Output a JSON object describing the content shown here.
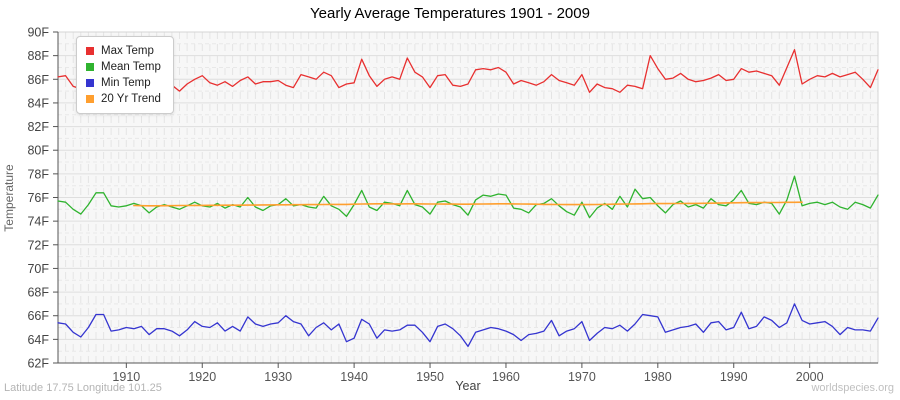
{
  "footer_left": "Latitude 17.75 Longitude 101.25",
  "footer_right": "worldspecies.org",
  "chart_data": {
    "type": "line",
    "title": "Yearly Average Temperatures 1901 - 2009",
    "xlabel": "Year",
    "ylabel": "Temperature",
    "x_range": [
      1901,
      2009
    ],
    "ylim": [
      62,
      90
    ],
    "ytick_step": 2,
    "ytick_suffix": "F",
    "xticks": [
      1910,
      1920,
      1930,
      1940,
      1950,
      1960,
      1970,
      1980,
      1990,
      2000
    ],
    "grid": true,
    "legend_position": "top-left",
    "plot_background": "#f7f7f7",
    "series": [
      {
        "name": "Max Temp",
        "color": "#e83030",
        "x_start": 1901,
        "values": [
          86.2,
          86.3,
          85.4,
          85.2,
          86.0,
          86.5,
          86.6,
          86.6,
          86.3,
          85.9,
          85.4,
          85.6,
          85.1,
          85.7,
          85.8,
          85.5,
          85.0,
          85.6,
          86.0,
          86.3,
          85.7,
          85.5,
          85.8,
          85.4,
          85.9,
          86.2,
          85.6,
          85.8,
          85.8,
          85.9,
          85.5,
          85.3,
          86.4,
          86.2,
          86.0,
          86.6,
          86.3,
          85.3,
          85.6,
          85.7,
          87.7,
          86.3,
          85.4,
          86.0,
          86.2,
          86.0,
          87.8,
          86.6,
          86.2,
          85.3,
          86.3,
          86.4,
          85.5,
          85.4,
          85.6,
          86.8,
          86.9,
          86.8,
          87.0,
          86.6,
          85.6,
          85.9,
          85.7,
          85.5,
          85.8,
          86.4,
          85.9,
          85.7,
          85.5,
          86.4,
          84.9,
          85.6,
          85.3,
          85.2,
          84.9,
          85.5,
          85.4,
          85.2,
          88.0,
          86.9,
          86.0,
          86.1,
          86.5,
          86.0,
          85.8,
          85.9,
          86.1,
          86.4,
          85.9,
          86.0,
          86.9,
          86.6,
          86.7,
          86.5,
          86.3,
          85.5,
          87.0,
          88.5,
          85.6,
          86.0,
          86.3,
          86.2,
          86.5,
          86.2,
          86.4,
          86.6,
          86.0,
          85.3,
          86.8
        ]
      },
      {
        "name": "Mean Temp",
        "color": "#2fb32f",
        "x_start": 1901,
        "values": [
          75.7,
          75.6,
          75.0,
          74.6,
          75.4,
          76.4,
          76.4,
          75.3,
          75.2,
          75.3,
          75.5,
          75.3,
          74.7,
          75.2,
          75.4,
          75.2,
          75.0,
          75.3,
          75.6,
          75.3,
          75.2,
          75.5,
          75.1,
          75.4,
          75.2,
          76.0,
          75.2,
          74.9,
          75.3,
          75.4,
          75.9,
          75.3,
          75.4,
          75.2,
          75.1,
          76.1,
          75.3,
          75.0,
          74.4,
          75.4,
          76.6,
          75.2,
          74.9,
          75.6,
          75.5,
          75.3,
          76.6,
          75.4,
          75.2,
          74.6,
          75.6,
          75.7,
          75.4,
          75.2,
          74.5,
          75.8,
          76.2,
          76.1,
          76.3,
          76.2,
          75.1,
          75.0,
          74.7,
          75.4,
          75.5,
          75.9,
          75.3,
          74.8,
          74.5,
          75.6,
          74.3,
          75.1,
          75.5,
          75.0,
          76.1,
          75.2,
          76.7,
          75.9,
          76.0,
          75.3,
          74.7,
          75.4,
          75.7,
          75.2,
          75.4,
          75.1,
          75.9,
          75.4,
          75.3,
          75.8,
          76.6,
          75.5,
          75.4,
          75.6,
          75.5,
          74.6,
          75.8,
          77.8,
          75.3,
          75.5,
          75.6,
          75.4,
          75.6,
          75.2,
          75.0,
          75.6,
          75.4,
          75.1,
          76.2
        ]
      },
      {
        "name": "Min Temp",
        "color": "#3535d0",
        "x_start": 1901,
        "values": [
          65.4,
          65.3,
          64.6,
          64.2,
          65.0,
          66.1,
          66.1,
          64.7,
          64.8,
          65.0,
          64.9,
          65.1,
          64.4,
          64.9,
          64.9,
          64.7,
          64.3,
          64.8,
          65.5,
          65.1,
          65.0,
          65.4,
          64.7,
          65.1,
          64.7,
          65.9,
          65.3,
          65.1,
          65.3,
          65.4,
          66.0,
          65.5,
          65.3,
          64.3,
          65.0,
          65.4,
          64.8,
          65.3,
          63.8,
          64.1,
          65.7,
          65.3,
          64.1,
          64.8,
          64.7,
          64.8,
          65.2,
          65.2,
          64.6,
          63.8,
          65.1,
          65.3,
          64.9,
          64.3,
          63.4,
          64.6,
          64.8,
          65.0,
          64.9,
          64.7,
          64.4,
          63.9,
          64.4,
          64.5,
          64.7,
          65.6,
          64.3,
          64.7,
          64.9,
          65.5,
          63.9,
          64.5,
          65.0,
          64.9,
          65.2,
          64.7,
          65.3,
          66.1,
          66.0,
          65.9,
          64.6,
          64.8,
          65.0,
          65.1,
          65.3,
          64.6,
          65.4,
          65.5,
          64.8,
          65.0,
          66.3,
          64.9,
          65.1,
          65.9,
          65.6,
          65.0,
          65.4,
          67.0,
          65.6,
          65.3,
          65.4,
          65.5,
          65.1,
          64.4,
          65.0,
          64.8,
          64.8,
          64.7,
          65.8
        ]
      },
      {
        "name": "20 Yr Trend",
        "color": "#ff9f2f",
        "x_start": 1911,
        "values": [
          75.32,
          75.31,
          75.3,
          75.3,
          75.31,
          75.31,
          75.32,
          75.32,
          75.33,
          75.33,
          75.34,
          75.34,
          75.35,
          75.35,
          75.35,
          75.36,
          75.36,
          75.37,
          75.37,
          75.38,
          75.38,
          75.39,
          75.39,
          75.4,
          75.4,
          75.41,
          75.42,
          75.42,
          75.42,
          75.43,
          75.45,
          75.46,
          75.47,
          75.47,
          75.46,
          75.46,
          75.47,
          75.47,
          75.46,
          75.45,
          75.45,
          75.44,
          75.44,
          75.43,
          75.43,
          75.44,
          75.45,
          75.46,
          75.47,
          75.47,
          75.46,
          75.45,
          75.44,
          75.43,
          75.42,
          75.42,
          75.41,
          75.4,
          75.4,
          75.4,
          75.4,
          75.41,
          75.42,
          75.43,
          75.44,
          75.45,
          75.46,
          75.47,
          75.48,
          75.48,
          75.48,
          75.49,
          75.49,
          75.5,
          75.5,
          75.51,
          75.52,
          75.53,
          75.54,
          75.55,
          75.56,
          75.57,
          75.57,
          75.58,
          75.58,
          75.58,
          75.59,
          75.59,
          75.6
        ]
      }
    ]
  }
}
